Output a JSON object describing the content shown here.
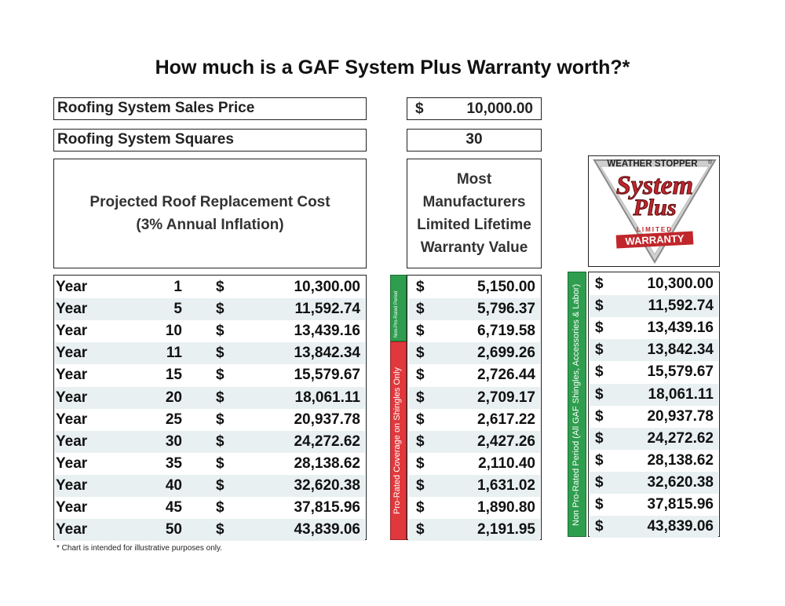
{
  "title": "How much is a GAF System Plus Warranty worth?*",
  "inputs": {
    "sales_price_label": "Roofing System Sales Price",
    "sales_price_currency": "$",
    "sales_price_value": "10,000.00",
    "squares_label": "Roofing System Squares",
    "squares_value": "30"
  },
  "headers": {
    "projected_line1": "Projected Roof Replacement Cost",
    "projected_line2": "(3% Annual Inflation)",
    "most_line1": "Most",
    "most_line2": "Manufacturers",
    "most_line3": "Limited Lifetime",
    "most_line4": "Warranty Value"
  },
  "logo": {
    "top_text": "WEATHER STOPPER",
    "reg_mark": "®",
    "brand_line1": "System",
    "brand_line2": "Plus",
    "limited_text": "LIMITED",
    "warranty_text": "WARRANTY"
  },
  "bars": {
    "non_prorated_short": "Non-Pro-Rated Period",
    "prorated": "Pro-Rated Coverage on Shingles Only",
    "non_prorated_long": "Non Pro-Rated Period (All GAF Shingles, Accessories & Labor)"
  },
  "colors": {
    "green": "#2e9e4e",
    "red": "#e0383c",
    "title_red": "#c0262b"
  },
  "currency": "$",
  "rows": [
    {
      "label": "Year",
      "year": "1",
      "projected": "10,300.00",
      "most": "5,150.00",
      "gaf": "10,300.00"
    },
    {
      "label": "Year",
      "year": "5",
      "projected": "11,592.74",
      "most": "5,796.37",
      "gaf": "11,592.74"
    },
    {
      "label": "Year",
      "year": "10",
      "projected": "13,439.16",
      "most": "6,719.58",
      "gaf": "13,439.16"
    },
    {
      "label": "Year",
      "year": "11",
      "projected": "13,842.34",
      "most": "2,699.26",
      "gaf": "13,842.34"
    },
    {
      "label": "Year",
      "year": "15",
      "projected": "15,579.67",
      "most": "2,726.44",
      "gaf": "15,579.67"
    },
    {
      "label": "Year",
      "year": "20",
      "projected": "18,061.11",
      "most": "2,709.17",
      "gaf": "18,061.11"
    },
    {
      "label": "Year",
      "year": "25",
      "projected": "20,937.78",
      "most": "2,617.22",
      "gaf": "20,937.78"
    },
    {
      "label": "Year",
      "year": "30",
      "projected": "24,272.62",
      "most": "2,427.26",
      "gaf": "24,272.62"
    },
    {
      "label": "Year",
      "year": "35",
      "projected": "28,138.62",
      "most": "2,110.40",
      "gaf": "28,138.62"
    },
    {
      "label": "Year",
      "year": "40",
      "projected": "32,620.38",
      "most": "1,631.02",
      "gaf": "32,620.38"
    },
    {
      "label": "Year",
      "year": "45",
      "projected": "37,815.96",
      "most": "1,890.80",
      "gaf": "37,815.96"
    },
    {
      "label": "Year",
      "year": "50",
      "projected": "43,839.06",
      "most": "2,191.95",
      "gaf": "43,839.06"
    }
  ],
  "footnote": "* Chart is intended for illustrative purposes only."
}
